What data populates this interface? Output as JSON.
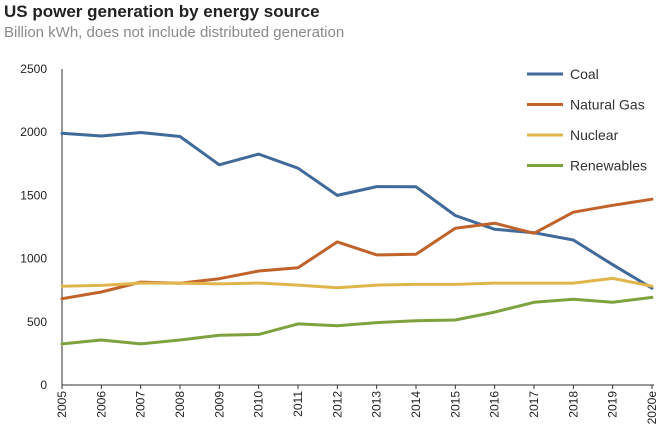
{
  "chart_data": {
    "type": "line",
    "title": "US power generation by energy source",
    "subtitle": "Billion kWh, does not include distributed generation",
    "xlabel": "",
    "ylabel": "",
    "categories": [
      "2005",
      "2006",
      "2007",
      "2008",
      "2009",
      "2010",
      "2011",
      "2012",
      "2013",
      "2014",
      "2015",
      "2016",
      "2017",
      "2018",
      "2019",
      "2020e"
    ],
    "yticks": [
      "0",
      "500",
      "1000",
      "1500",
      "2000",
      "2500"
    ],
    "ylim": [
      0,
      2500
    ],
    "grid": false,
    "legend_position": "top-right",
    "series": [
      {
        "name": "Coal",
        "color": "#3f6a99",
        "values": [
          1991,
          1970,
          1998,
          1966,
          1742,
          1827,
          1715,
          1500,
          1570,
          1568,
          1341,
          1232,
          1205,
          1147,
          952,
          766
        ]
      },
      {
        "name": "Natural Gas",
        "color": "#c0622a",
        "values": [
          683,
          736,
          814,
          805,
          841,
          902,
          928,
          1132,
          1029,
          1034,
          1240,
          1280,
          1200,
          1367,
          1422,
          1470
        ]
      },
      {
        "name": "Nuclear",
        "color": "#e0b64c",
        "values": [
          782,
          788,
          806,
          806,
          800,
          807,
          790,
          770,
          790,
          796,
          796,
          806,
          806,
          806,
          843,
          782
        ]
      },
      {
        "name": "Renewables",
        "color": "#7ea23d",
        "values": [
          325,
          356,
          325,
          356,
          393,
          400,
          483,
          468,
          494,
          508,
          514,
          577,
          654,
          678,
          654,
          693
        ]
      }
    ]
  }
}
